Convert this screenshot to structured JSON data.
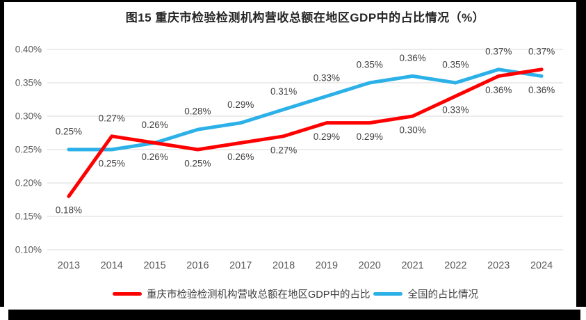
{
  "title": "图15 重庆市检验检测机构营收总额在地区GDP中的占比情况（%）",
  "chart_data": {
    "type": "line",
    "title": "图15 重庆市检验检测机构营收总额在地区GDP中的占比情况（%）",
    "categories": [
      "2013",
      "2014",
      "2015",
      "2016",
      "2017",
      "2018",
      "2019",
      "2020",
      "2021",
      "2022",
      "2023",
      "2024"
    ],
    "series": [
      {
        "name": "重庆市检验检测机构营收总额在地区GDP中的占比",
        "color": "#FF0000",
        "values": [
          0.18,
          0.27,
          0.26,
          0.25,
          0.26,
          0.27,
          0.29,
          0.29,
          0.3,
          0.33,
          0.36,
          0.37
        ],
        "labels": [
          "0.18%",
          "0.27%",
          "0.26%",
          "0.25%",
          "0.26%",
          "0.27%",
          "0.29%",
          "0.29%",
          "0.30%",
          "0.33%",
          "0.36%",
          "0.37%"
        ],
        "label_positions": [
          "below",
          "above",
          "above",
          "below",
          "below",
          "below",
          "below",
          "below",
          "below",
          "below",
          "below",
          "above"
        ]
      },
      {
        "name": "全国的占比情况",
        "color": "#2BB0E8",
        "values": [
          0.25,
          0.25,
          0.26,
          0.28,
          0.29,
          0.31,
          0.33,
          0.35,
          0.36,
          0.35,
          0.37,
          0.36
        ],
        "labels": [
          "0.25%",
          "0.25%",
          "0.26%",
          "0.28%",
          "0.29%",
          "0.31%",
          "0.33%",
          "0.35%",
          "0.36%",
          "0.35%",
          "0.37%",
          "0.36%"
        ],
        "label_positions": [
          "above",
          "below",
          "below",
          "above",
          "above",
          "above",
          "above",
          "above",
          "above",
          "above",
          "above",
          "below"
        ]
      }
    ],
    "xlabel": "",
    "ylabel": "",
    "ylim": [
      0.1,
      0.4
    ],
    "ytick_step": 0.05,
    "ytick_labels": [
      "0.10%",
      "0.15%",
      "0.20%",
      "0.25%",
      "0.30%",
      "0.35%",
      "0.40%"
    ],
    "grid": true,
    "legend_position": "bottom",
    "colors": {
      "gridline": "#D9D9D9",
      "axis_text": "#595959",
      "data_label": "#404040"
    }
  },
  "legend": {
    "items": [
      {
        "label": "重庆市检验检测机构营收总额在地区GDP中的占比",
        "color": "#FF0000"
      },
      {
        "label": "全国的占比情况",
        "color": "#2BB0E8"
      }
    ]
  }
}
